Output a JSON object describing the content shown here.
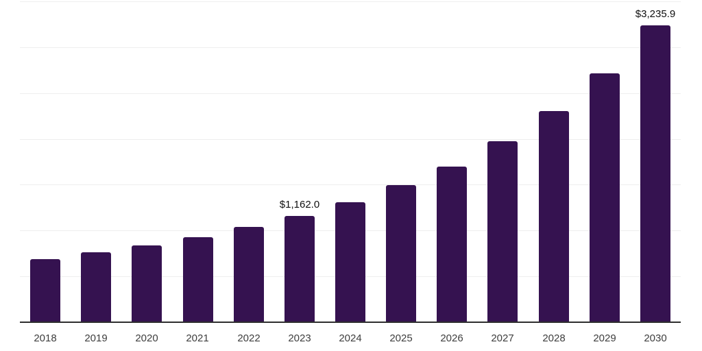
{
  "chart_data": {
    "type": "bar",
    "title": "",
    "xlabel": "",
    "ylabel": "",
    "categories": [
      "2018",
      "2019",
      "2020",
      "2021",
      "2022",
      "2023",
      "2024",
      "2025",
      "2026",
      "2027",
      "2028",
      "2029",
      "2030"
    ],
    "values": [
      690,
      763,
      838,
      928,
      1040,
      1162.0,
      1310,
      1495,
      1698,
      1972,
      2304,
      2716,
      3235.9
    ],
    "data_labels": [
      null,
      null,
      null,
      null,
      null,
      "$1,162.0",
      null,
      null,
      null,
      null,
      null,
      null,
      "$3,235.9"
    ],
    "ylim": [
      0,
      3500
    ],
    "gridline_step": 500,
    "grid": "horizontal-only",
    "legend": "none",
    "y_tick_labels": "none",
    "bar_color": "#351250",
    "axis_line_color": "#2e2e2e",
    "gridline_color": "#eeeeee",
    "tick_label_color": "#3d3d3d",
    "data_label_color": "#0f0f0f"
  }
}
